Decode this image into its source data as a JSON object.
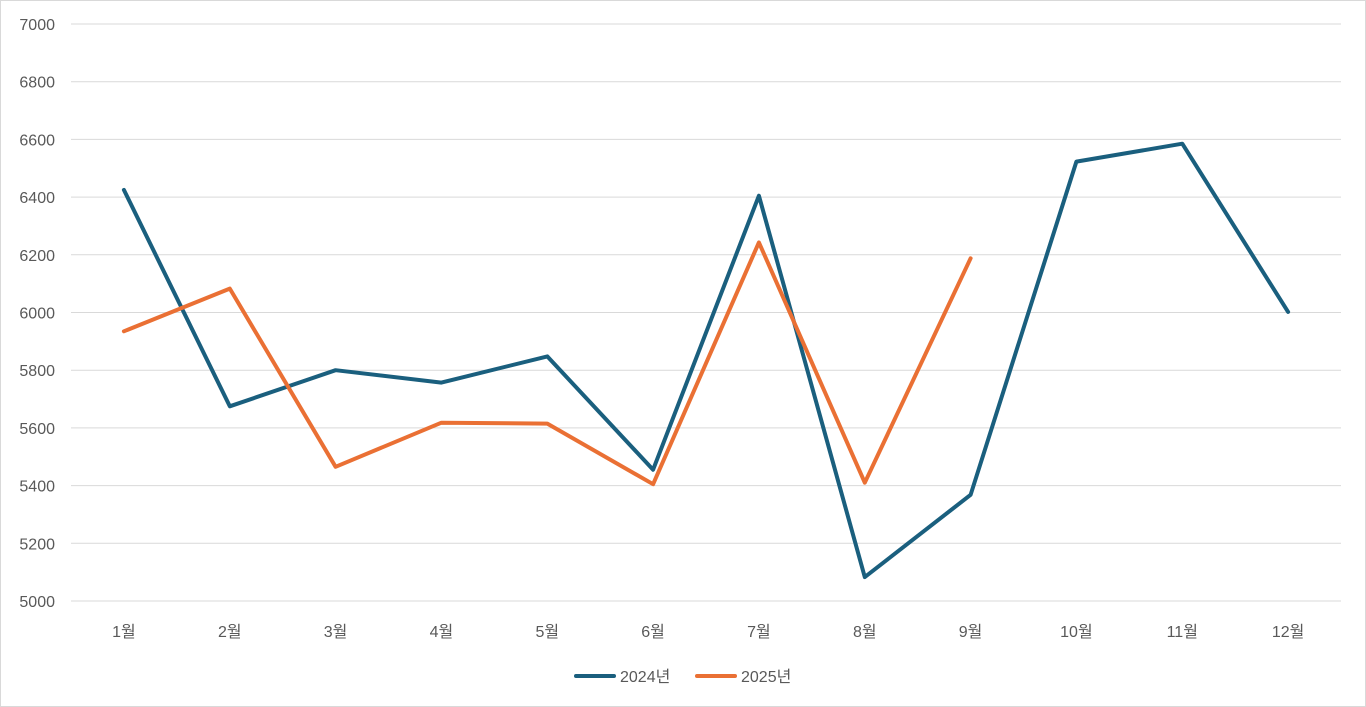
{
  "chart_data": {
    "type": "line",
    "title": "",
    "xlabel": "",
    "ylabel": "",
    "categories": [
      "1월",
      "2월",
      "3월",
      "4월",
      "5월",
      "6월",
      "7월",
      "8월",
      "9월",
      "10월",
      "11월",
      "12월"
    ],
    "ylim": [
      5000,
      7000
    ],
    "yticks": [
      5000,
      5200,
      5400,
      5600,
      5800,
      6000,
      6200,
      6400,
      6600,
      6800,
      7000
    ],
    "grid": true,
    "legend_position": "bottom",
    "series": [
      {
        "name": "2024년",
        "color": "#1a5f7e",
        "values": [
          6425,
          5675,
          5800,
          5757,
          5848,
          5455,
          6405,
          5083,
          5368,
          6523,
          6585,
          6002
        ]
      },
      {
        "name": "2025년",
        "color": "#ea7034",
        "values": [
          5935,
          6083,
          5465,
          5618,
          5615,
          5405,
          6243,
          5410,
          6188,
          null,
          null,
          null
        ]
      }
    ]
  }
}
